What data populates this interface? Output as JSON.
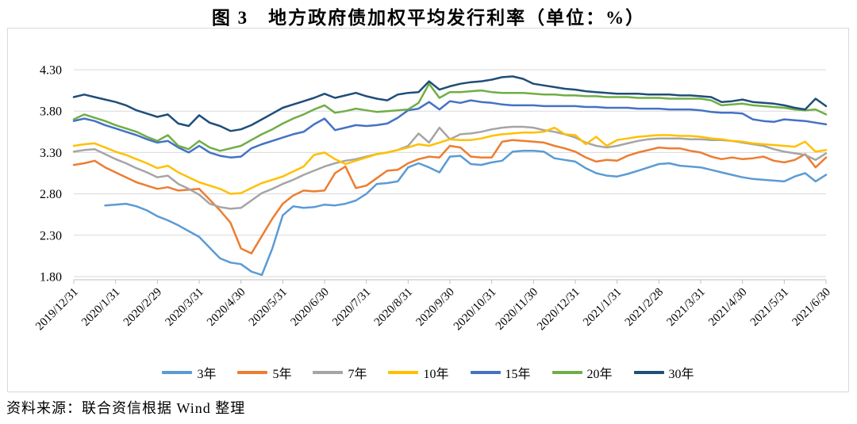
{
  "title": "图 3　地方政府债加权平均发行利率（单位：%）",
  "source_note": "资料来源：联合资信根据 Wind 整理",
  "colors": {
    "grid": "#d9d9d9",
    "axis": "#bfbfbf",
    "border": "#d9d9d9",
    "text": "#000000"
  },
  "chart_data": {
    "type": "line",
    "title": "图 3　地方政府债加权平均发行利率（单位：%）",
    "unit": "%",
    "grid": "horizontal",
    "legend_position": "bottom",
    "ylim": [
      1.8,
      4.3
    ],
    "y_ticks": [
      4.3,
      3.8,
      3.3,
      2.8,
      2.3,
      1.8
    ],
    "y_tick_labels": [
      "4.30",
      "3.80",
      "3.30",
      "2.80",
      "2.30",
      "1.80"
    ],
    "x_tick_labels": [
      "2019/12/31",
      "2020/1/31",
      "2020/2/29",
      "2020/3/31",
      "2020/4/30",
      "2020/5/31",
      "2020/6/30",
      "2020/7/31",
      "2020/8/31",
      "2020/9/30",
      "2020/10/31",
      "2020/11/30",
      "2020/12/31",
      "2021/1/31",
      "2021/2/28",
      "2021/3/31",
      "2021/4/30",
      "2021/5/31",
      "2021/6/30"
    ],
    "samples_per_month": 4,
    "series": [
      {
        "name": "3年",
        "color": "#5B9BD5",
        "values": [
          null,
          null,
          null,
          2.66,
          2.67,
          2.68,
          2.65,
          2.6,
          2.53,
          2.48,
          2.42,
          2.35,
          2.28,
          2.15,
          2.02,
          1.97,
          1.95,
          1.86,
          1.82,
          2.14,
          2.54,
          2.65,
          2.63,
          2.64,
          2.67,
          2.66,
          2.68,
          2.72,
          2.8,
          2.92,
          2.93,
          2.95,
          3.12,
          3.17,
          3.12,
          3.06,
          3.25,
          3.26,
          3.16,
          3.15,
          3.18,
          3.2,
          3.31,
          3.32,
          3.32,
          3.31,
          3.23,
          3.21,
          3.19,
          3.11,
          3.05,
          3.02,
          3.01,
          3.04,
          3.08,
          3.12,
          3.16,
          3.17,
          3.14,
          3.13,
          3.12,
          3.09,
          3.06,
          3.03,
          3.0,
          2.98,
          2.97,
          2.96,
          2.95,
          3.01,
          3.05,
          2.95,
          3.03
        ]
      },
      {
        "name": "5年",
        "color": "#ED7D31",
        "values": [
          3.15,
          3.17,
          3.2,
          3.12,
          3.06,
          3.0,
          2.94,
          2.9,
          2.86,
          2.88,
          2.84,
          2.85,
          2.86,
          2.73,
          2.6,
          2.45,
          2.14,
          2.08,
          2.29,
          2.5,
          2.68,
          2.78,
          2.84,
          2.83,
          2.84,
          3.05,
          3.13,
          2.87,
          2.9,
          2.99,
          3.08,
          3.09,
          3.17,
          3.22,
          3.25,
          3.24,
          3.38,
          3.36,
          3.25,
          3.24,
          3.24,
          3.43,
          3.45,
          3.44,
          3.43,
          3.42,
          3.38,
          3.35,
          3.31,
          3.24,
          3.19,
          3.21,
          3.2,
          3.26,
          3.3,
          3.33,
          3.36,
          3.35,
          3.35,
          3.32,
          3.3,
          3.25,
          3.22,
          3.24,
          3.22,
          3.23,
          3.25,
          3.2,
          3.18,
          3.21,
          3.28,
          3.12,
          3.24
        ]
      },
      {
        "name": "7年",
        "color": "#A5A5A5",
        "values": [
          3.31,
          3.33,
          3.34,
          3.28,
          3.22,
          3.17,
          3.11,
          3.06,
          3.0,
          3.02,
          2.92,
          2.86,
          2.79,
          2.68,
          2.64,
          2.62,
          2.63,
          2.72,
          2.81,
          2.86,
          2.92,
          2.97,
          3.03,
          3.08,
          3.13,
          3.17,
          3.2,
          3.22,
          3.25,
          3.28,
          3.3,
          3.33,
          3.38,
          3.53,
          3.42,
          3.6,
          3.46,
          3.52,
          3.53,
          3.55,
          3.58,
          3.6,
          3.61,
          3.61,
          3.6,
          3.57,
          3.55,
          3.52,
          3.48,
          3.42,
          3.38,
          3.36,
          3.38,
          3.41,
          3.44,
          3.46,
          3.47,
          3.47,
          3.47,
          3.46,
          3.46,
          3.45,
          3.45,
          3.44,
          3.42,
          3.4,
          3.38,
          3.34,
          3.31,
          3.29,
          3.27,
          3.21,
          3.29
        ]
      },
      {
        "name": "10年",
        "color": "#FFC000",
        "values": [
          3.38,
          3.4,
          3.41,
          3.36,
          3.31,
          3.27,
          3.22,
          3.17,
          3.11,
          3.14,
          3.06,
          3.0,
          2.94,
          2.9,
          2.86,
          2.8,
          2.81,
          2.87,
          2.93,
          2.97,
          3.01,
          3.07,
          3.13,
          3.27,
          3.3,
          3.22,
          3.16,
          3.2,
          3.24,
          3.28,
          3.3,
          3.33,
          3.36,
          3.4,
          3.38,
          3.42,
          3.46,
          3.45,
          3.45,
          3.47,
          3.5,
          3.52,
          3.53,
          3.54,
          3.54,
          3.55,
          3.6,
          3.52,
          3.51,
          3.4,
          3.49,
          3.38,
          3.45,
          3.47,
          3.49,
          3.5,
          3.51,
          3.51,
          3.5,
          3.5,
          3.49,
          3.47,
          3.46,
          3.44,
          3.43,
          3.41,
          3.4,
          3.39,
          3.38,
          3.37,
          3.43,
          3.31,
          3.33
        ]
      },
      {
        "name": "15年",
        "color": "#4472C4",
        "values": [
          3.68,
          3.71,
          3.68,
          3.63,
          3.59,
          3.55,
          3.51,
          3.46,
          3.42,
          3.44,
          3.36,
          3.3,
          3.38,
          3.3,
          3.26,
          3.24,
          3.25,
          3.35,
          3.4,
          3.44,
          3.48,
          3.52,
          3.55,
          3.64,
          3.71,
          3.57,
          3.6,
          3.63,
          3.62,
          3.63,
          3.65,
          3.72,
          3.81,
          3.83,
          3.91,
          3.82,
          3.92,
          3.9,
          3.93,
          3.91,
          3.9,
          3.88,
          3.87,
          3.87,
          3.87,
          3.86,
          3.86,
          3.86,
          3.86,
          3.85,
          3.85,
          3.84,
          3.84,
          3.84,
          3.83,
          3.83,
          3.83,
          3.82,
          3.82,
          3.82,
          3.81,
          3.79,
          3.78,
          3.78,
          3.77,
          3.7,
          3.68,
          3.67,
          3.7,
          3.69,
          3.68,
          3.66,
          3.64
        ]
      },
      {
        "name": "20年",
        "color": "#70AD47",
        "values": [
          3.7,
          3.76,
          3.72,
          3.68,
          3.63,
          3.59,
          3.55,
          3.49,
          3.44,
          3.51,
          3.38,
          3.34,
          3.44,
          3.36,
          3.32,
          3.35,
          3.38,
          3.45,
          3.52,
          3.58,
          3.65,
          3.71,
          3.76,
          3.82,
          3.87,
          3.78,
          3.8,
          3.83,
          3.81,
          3.79,
          3.8,
          3.81,
          3.82,
          3.9,
          4.13,
          3.96,
          4.03,
          4.03,
          4.04,
          4.05,
          4.03,
          4.02,
          4.02,
          4.02,
          4.01,
          4.0,
          4.0,
          3.99,
          3.99,
          3.98,
          3.98,
          3.97,
          3.97,
          3.97,
          3.96,
          3.96,
          3.96,
          3.95,
          3.95,
          3.95,
          3.95,
          3.93,
          3.87,
          3.88,
          3.89,
          3.87,
          3.86,
          3.85,
          3.84,
          3.82,
          3.81,
          3.82,
          3.76
        ]
      },
      {
        "name": "30年",
        "color": "#1F4E79",
        "values": [
          3.97,
          4.0,
          3.97,
          3.94,
          3.91,
          3.87,
          3.81,
          3.77,
          3.73,
          3.76,
          3.65,
          3.62,
          3.75,
          3.66,
          3.62,
          3.56,
          3.58,
          3.63,
          3.7,
          3.77,
          3.84,
          3.88,
          3.92,
          3.96,
          4.01,
          3.96,
          3.99,
          4.02,
          3.98,
          3.95,
          3.93,
          4.0,
          4.02,
          4.03,
          4.16,
          4.06,
          4.1,
          4.13,
          4.15,
          4.16,
          4.18,
          4.21,
          4.22,
          4.19,
          4.13,
          4.11,
          4.09,
          4.07,
          4.06,
          4.04,
          4.03,
          4.02,
          4.01,
          4.01,
          4.01,
          4.0,
          4.0,
          4.0,
          3.99,
          3.99,
          3.98,
          3.97,
          3.91,
          3.92,
          3.94,
          3.91,
          3.9,
          3.89,
          3.87,
          3.84,
          3.82,
          3.95,
          3.86
        ]
      }
    ]
  }
}
